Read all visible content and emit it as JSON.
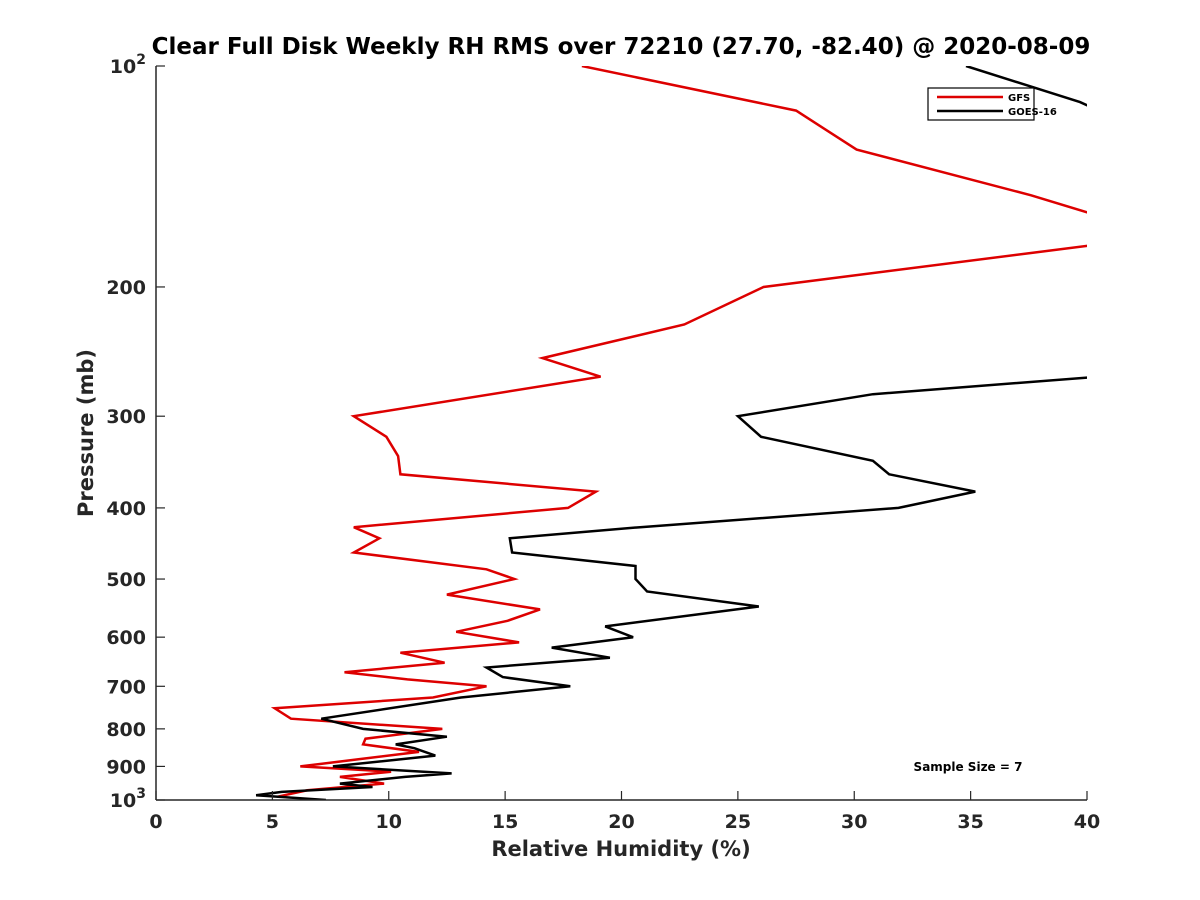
{
  "chart_data": {
    "type": "line",
    "title": "Clear Full Disk Weekly RH RMS over 72210 (27.70, -82.40) @ 2020-08-09",
    "xlabel": "Relative Humidity (%)",
    "ylabel": "Pressure (mb)",
    "xlim": [
      0,
      40
    ],
    "ylim": [
      100,
      1000
    ],
    "yscale": "log",
    "yreversed": true,
    "xticks": [
      0,
      5,
      10,
      15,
      20,
      25,
      30,
      35,
      40
    ],
    "yticks": [
      {
        "value": 100,
        "base": "10",
        "exp": "2"
      },
      {
        "value": 200,
        "label": "200"
      },
      {
        "value": 300,
        "label": "300"
      },
      {
        "value": 400,
        "label": "400"
      },
      {
        "value": 500,
        "label": "500"
      },
      {
        "value": 600,
        "label": "600"
      },
      {
        "value": 700,
        "label": "700"
      },
      {
        "value": 800,
        "label": "800"
      },
      {
        "value": 900,
        "label": "900"
      },
      {
        "value": 1000,
        "base": "10",
        "exp": "3"
      }
    ],
    "legend_position": "top-right",
    "annotation": "Sample Size = 7",
    "series": [
      {
        "name": "GFS",
        "color": "#dd0000",
        "points": [
          [
            18.3,
            100
          ],
          [
            27.5,
            115
          ],
          [
            30.1,
            130
          ],
          [
            37.6,
            150
          ],
          [
            40.5,
            160
          ],
          [
            40.5,
            175
          ],
          [
            26.1,
            200
          ],
          [
            22.7,
            225
          ],
          [
            16.6,
            250
          ],
          [
            19.1,
            265
          ],
          [
            8.5,
            300
          ],
          [
            9.9,
            320
          ],
          [
            10.4,
            340
          ],
          [
            10.5,
            360
          ],
          [
            18.9,
            380
          ],
          [
            17.7,
            400
          ],
          [
            8.5,
            425
          ],
          [
            9.6,
            440
          ],
          [
            8.5,
            460
          ],
          [
            14.2,
            485
          ],
          [
            15.4,
            500
          ],
          [
            12.5,
            525
          ],
          [
            16.5,
            550
          ],
          [
            15.1,
            570
          ],
          [
            12.9,
            590
          ],
          [
            15.6,
            610
          ],
          [
            10.5,
            630
          ],
          [
            12.4,
            650
          ],
          [
            8.1,
            670
          ],
          [
            10.8,
            685
          ],
          [
            14.2,
            700
          ],
          [
            11.9,
            725
          ],
          [
            5.1,
            750
          ],
          [
            5.8,
            775
          ],
          [
            12.3,
            800
          ],
          [
            9.0,
            825
          ],
          [
            8.9,
            840
          ],
          [
            11.3,
            860
          ],
          [
            8.7,
            880
          ],
          [
            6.2,
            900
          ],
          [
            10.1,
            915
          ],
          [
            7.9,
            930
          ],
          [
            9.8,
            950
          ],
          [
            6.5,
            970
          ],
          [
            5.2,
            990
          ]
        ]
      },
      {
        "name": "GOES-16",
        "color": "#000000",
        "points": [
          [
            34.8,
            100
          ],
          [
            39.7,
            112
          ],
          [
            40.5,
            115
          ],
          [
            40.5,
            265
          ],
          [
            30.8,
            280
          ],
          [
            25.0,
            300
          ],
          [
            26.0,
            320
          ],
          [
            30.8,
            345
          ],
          [
            31.5,
            360
          ],
          [
            35.2,
            380
          ],
          [
            31.9,
            400
          ],
          [
            20.8,
            425
          ],
          [
            15.2,
            440
          ],
          [
            15.3,
            460
          ],
          [
            20.6,
            480
          ],
          [
            20.6,
            500
          ],
          [
            21.1,
            520
          ],
          [
            25.9,
            545
          ],
          [
            19.3,
            580
          ],
          [
            20.5,
            600
          ],
          [
            17.0,
            620
          ],
          [
            19.5,
            640
          ],
          [
            14.2,
            660
          ],
          [
            14.9,
            680
          ],
          [
            17.8,
            700
          ],
          [
            13.1,
            725
          ],
          [
            7.1,
            775
          ],
          [
            8.9,
            800
          ],
          [
            12.5,
            820
          ],
          [
            10.3,
            840
          ],
          [
            11.1,
            850
          ],
          [
            12.0,
            870
          ],
          [
            7.6,
            900
          ],
          [
            12.7,
            920
          ],
          [
            10.7,
            930
          ],
          [
            7.9,
            950
          ],
          [
            9.3,
            960
          ],
          [
            5.4,
            975
          ],
          [
            4.3,
            985
          ],
          [
            7.3,
            1000
          ]
        ]
      }
    ]
  }
}
